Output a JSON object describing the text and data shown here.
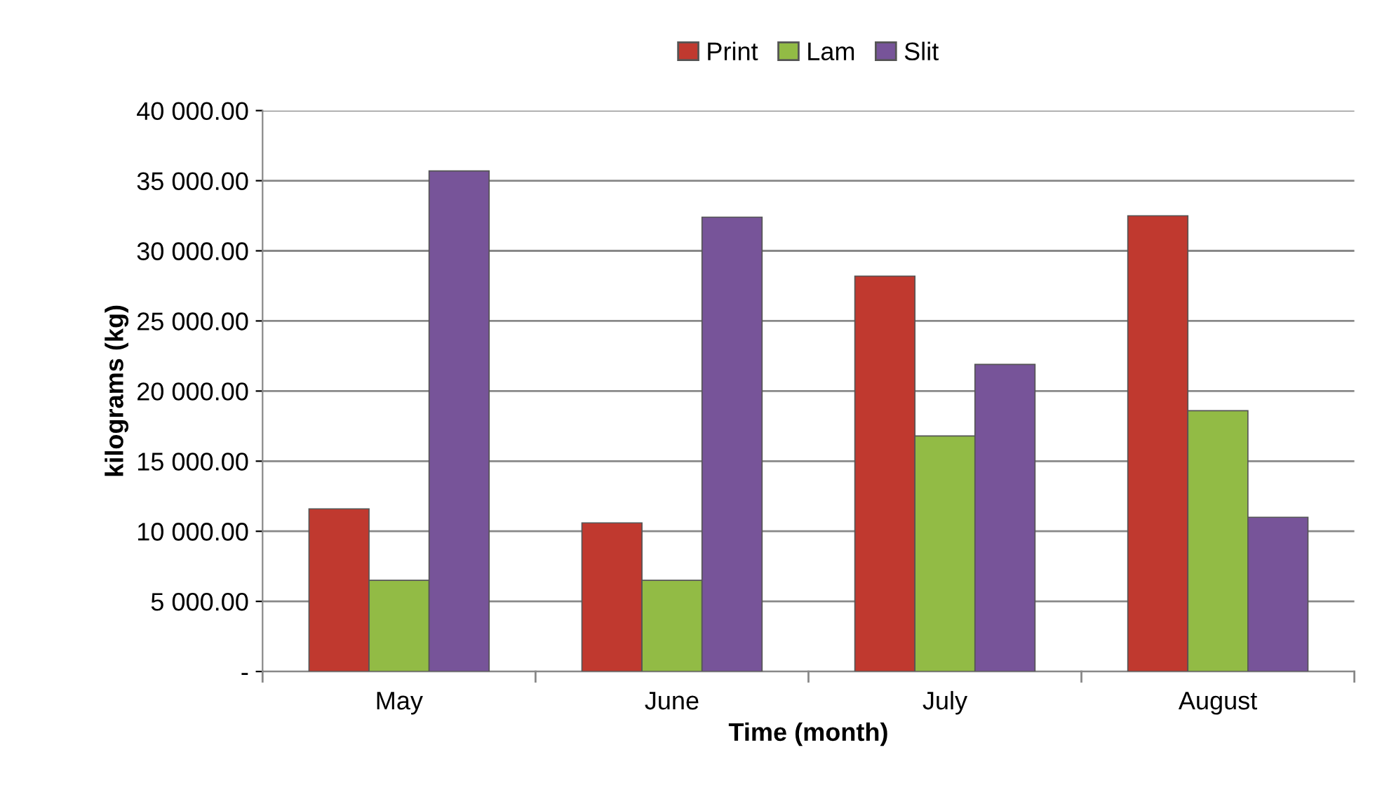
{
  "chart_data": {
    "type": "bar",
    "xlabel": "Time (month)",
    "ylabel": "kilograms (kg)",
    "categories": [
      "May",
      "June",
      "July",
      "August"
    ],
    "series": [
      {
        "name": "Print",
        "color": "#c0392f",
        "values": [
          11600,
          10600,
          28200,
          32500
        ]
      },
      {
        "name": "Lam",
        "color": "#92bb45",
        "values": [
          6500,
          6500,
          16800,
          18600
        ]
      },
      {
        "name": "Slit",
        "color": "#775499",
        "values": [
          35700,
          32400,
          21900,
          11000
        ]
      }
    ],
    "ylim": [
      0,
      40000
    ],
    "yticks": [
      {
        "value": 0,
        "label": "-"
      },
      {
        "value": 5000,
        "label": "5 000.00"
      },
      {
        "value": 10000,
        "label": "10 000.00"
      },
      {
        "value": 15000,
        "label": "15 000.00"
      },
      {
        "value": 20000,
        "label": "20 000.00"
      },
      {
        "value": 25000,
        "label": "25 000.00"
      },
      {
        "value": 30000,
        "label": "30 000.00"
      },
      {
        "value": 35000,
        "label": "35 000.00"
      },
      {
        "value": 40000,
        "label": "40 000.00"
      }
    ],
    "grid": "y",
    "legend": "top"
  }
}
